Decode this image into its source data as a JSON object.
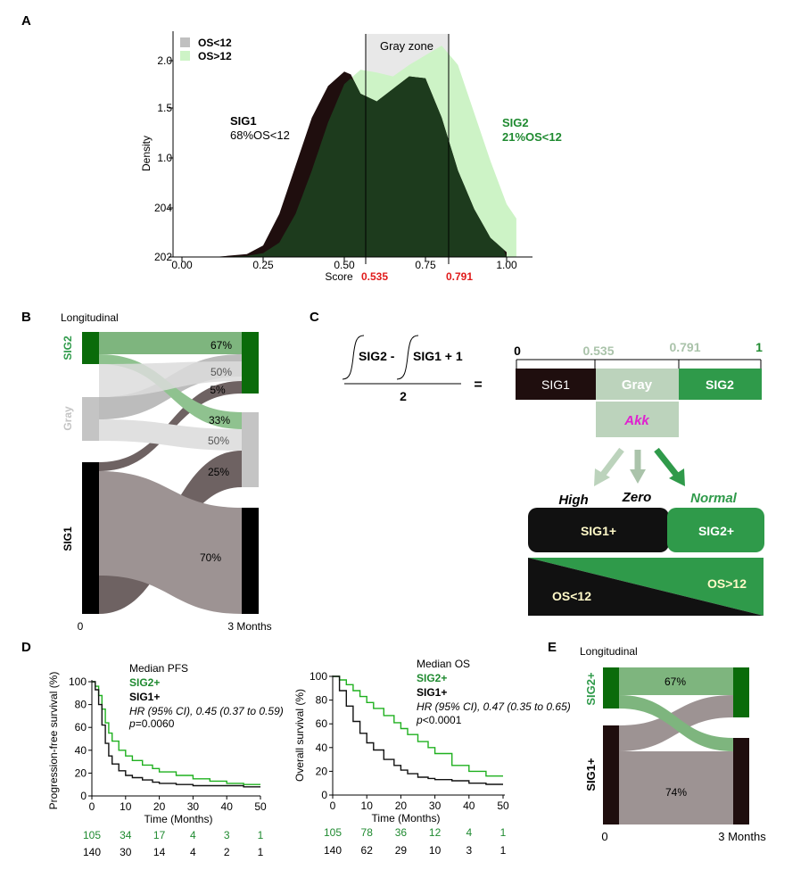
{
  "colors": {
    "dark": "#1f0e0e",
    "darkgreen": "#1d3b1d",
    "lightgreen": "#cdf3c6",
    "gray_zone": "#e8e8e8",
    "green_mid": "#2f9a4a",
    "green_label": "#1f8a30",
    "red": "#e01b1b",
    "taupe": "#9d9393",
    "taupe_dark": "#6e6262",
    "lightgray": "#d6d6d6",
    "green_flow": "#7eb57e",
    "black": "#000000",
    "darkgreen_bar": "#0a6b0a",
    "gray_bar": "#c4c4c4",
    "magenta": "#e020d0",
    "pale_green": "#bcd3bc",
    "pale_label": "#aac3aa"
  },
  "panel_a": {
    "label": "A",
    "gray_zone_label": "Gray zone",
    "legend": [
      "OS<12",
      "OS>12"
    ],
    "sig1_title": "SIG1",
    "sig1_sub": "68%OS<12",
    "sig2_title": "SIG2",
    "sig2_sub": "21%OS<12",
    "cut_low": "0.535",
    "cut_high": "0.791",
    "chart_data": {
      "type": "area",
      "xlabel": "Score",
      "ylabel": "Density",
      "xticks": [
        "0.00",
        "0.25",
        "0.50",
        "0.75",
        "1.00"
      ],
      "yticks": [
        "202",
        "204",
        "1.0",
        "1.5",
        "2.0"
      ],
      "xlim": [
        0.0,
        1.03
      ],
      "ylim": [
        0.0,
        2.35
      ],
      "series": [
        {
          "name": "OS<12",
          "x": [
            0.0,
            0.1,
            0.2,
            0.25,
            0.3,
            0.35,
            0.4,
            0.45,
            0.5,
            0.52,
            0.55,
            0.6,
            0.65,
            0.7,
            0.75,
            0.8,
            0.85,
            0.9,
            0.95,
            1.0
          ],
          "y": [
            0.0,
            0.0,
            0.03,
            0.12,
            0.45,
            0.95,
            1.45,
            1.78,
            1.93,
            1.9,
            1.7,
            1.62,
            1.75,
            1.88,
            1.86,
            1.45,
            0.9,
            0.5,
            0.2,
            0.05
          ]
        },
        {
          "name": "OS>12",
          "x": [
            0.0,
            0.1,
            0.2,
            0.25,
            0.3,
            0.35,
            0.4,
            0.45,
            0.5,
            0.55,
            0.6,
            0.65,
            0.7,
            0.75,
            0.8,
            0.85,
            0.9,
            0.95,
            1.0,
            1.03
          ],
          "y": [
            0.0,
            0.0,
            0.01,
            0.04,
            0.15,
            0.45,
            0.9,
            1.4,
            1.8,
            1.95,
            1.92,
            1.88,
            2.0,
            2.1,
            2.2,
            2.0,
            1.5,
            1.0,
            0.55,
            0.4
          ]
        }
      ]
    }
  },
  "panel_b": {
    "label": "B",
    "title": "Longitudinal",
    "left_groups": [
      "SIG2",
      "Gray",
      "SIG1"
    ],
    "x_start": "0",
    "x_end": "3 Months",
    "pct_labels": [
      "67%",
      "50%",
      "5%",
      "33%",
      "50%",
      "25%",
      "70%"
    ]
  },
  "panel_c": {
    "label": "C",
    "formula_part1": "SIG2 -",
    "formula_part2": "SIG1 + 1",
    "formula_denom": "2",
    "equals": "=",
    "scale_ticks": [
      "0",
      "0.535",
      "0.791",
      "1"
    ],
    "bar_labels": [
      "SIG1",
      "Gray",
      "SIG2"
    ],
    "akk": "Akk",
    "levels": [
      "High",
      "Zero",
      "Normal"
    ],
    "outcome_boxes": [
      "SIG1+",
      "SIG2+"
    ],
    "os_low": "OS<12",
    "os_high": "OS>12"
  },
  "panel_d": {
    "label": "D",
    "pfs": {
      "title": "Median PFS",
      "groups": [
        "SIG2+",
        "SIG1+"
      ],
      "hr": "HR (95% CI), 0.45 (0.37 to 0.59)",
      "p_letter": "p",
      "p_value": "=0.0060",
      "chart_data": {
        "type": "line",
        "xlabel": "Time (Months)",
        "ylabel": "Progression-free survival (%)",
        "xticks": [
          "0",
          "10",
          "20",
          "30",
          "40",
          "50"
        ],
        "yticks": [
          "0",
          "20",
          "40",
          "60",
          "80",
          "100"
        ],
        "xlim": [
          0,
          50
        ],
        "ylim": [
          0,
          100
        ],
        "series": [
          {
            "name": "SIG2+",
            "x": [
              0,
              1,
              2,
              3,
              4,
              5,
              6,
              8,
              10,
              12,
              15,
              18,
              20,
              25,
              30,
              35,
              40,
              45,
              50
            ],
            "y": [
              100,
              96,
              88,
              76,
              64,
              55,
              48,
              40,
              35,
              31,
              27,
              24,
              21,
              18,
              15,
              13,
              11,
              10,
              10
            ]
          },
          {
            "name": "SIG1+",
            "x": [
              0,
              1,
              2,
              3,
              4,
              5,
              6,
              8,
              10,
              12,
              15,
              18,
              20,
              25,
              30,
              35,
              40,
              45,
              50
            ],
            "y": [
              100,
              93,
              80,
              62,
              46,
              35,
              28,
              22,
              18,
              16,
              14,
              12,
              11,
              10,
              9,
              9,
              9,
              8,
              8
            ]
          }
        ]
      },
      "at_risk": {
        "SIG2+": [
          "105",
          "34",
          "17",
          "4",
          "3",
          "1"
        ],
        "SIG1+": [
          "140",
          "30",
          "14",
          "4",
          "2",
          "1"
        ]
      }
    },
    "os": {
      "title": "Median OS",
      "groups": [
        "SIG2+",
        "SIG1+"
      ],
      "hr": "HR (95% CI), 0.47 (0.35 to 0.65)",
      "p_letter": "p",
      "p_value": "<0.0001",
      "chart_data": {
        "type": "line",
        "xlabel": "Time (Months)",
        "ylabel": "Overall survival (%)",
        "xticks": [
          "0",
          "10",
          "20",
          "30",
          "40",
          "50"
        ],
        "yticks": [
          "0",
          "20",
          "40",
          "60",
          "80",
          "100"
        ],
        "xlim": [
          0,
          50
        ],
        "ylim": [
          0,
          100
        ],
        "series": [
          {
            "name": "SIG2+",
            "x": [
              0,
              2,
              4,
              6,
              8,
              10,
              12,
              15,
              18,
              20,
              22,
              25,
              28,
              30,
              35,
              40,
              45,
              50
            ],
            "y": [
              100,
              97,
              93,
              88,
              83,
              78,
              73,
              67,
              61,
              56,
              51,
              45,
              40,
              35,
              25,
              20,
              16,
              16
            ]
          },
          {
            "name": "SIG1+",
            "x": [
              0,
              2,
              4,
              6,
              8,
              10,
              12,
              15,
              18,
              20,
              22,
              25,
              28,
              30,
              35,
              40,
              45,
              50
            ],
            "y": [
              100,
              88,
              75,
              62,
              52,
              44,
              38,
              30,
              25,
              21,
              18,
              15,
              14,
              13,
              12,
              10,
              9,
              9
            ]
          }
        ]
      },
      "at_risk": {
        "SIG2+": [
          "105",
          "78",
          "36",
          "12",
          "4",
          "1"
        ],
        "SIG1+": [
          "140",
          "62",
          "29",
          "10",
          "3",
          "1"
        ]
      }
    }
  },
  "panel_e": {
    "label": "E",
    "title": "Longitudinal",
    "left_groups": [
      "SIG2+",
      "SIG1+"
    ],
    "x_start": "0",
    "x_end": "3 Months",
    "pct_labels": [
      "67%",
      "74%"
    ]
  }
}
